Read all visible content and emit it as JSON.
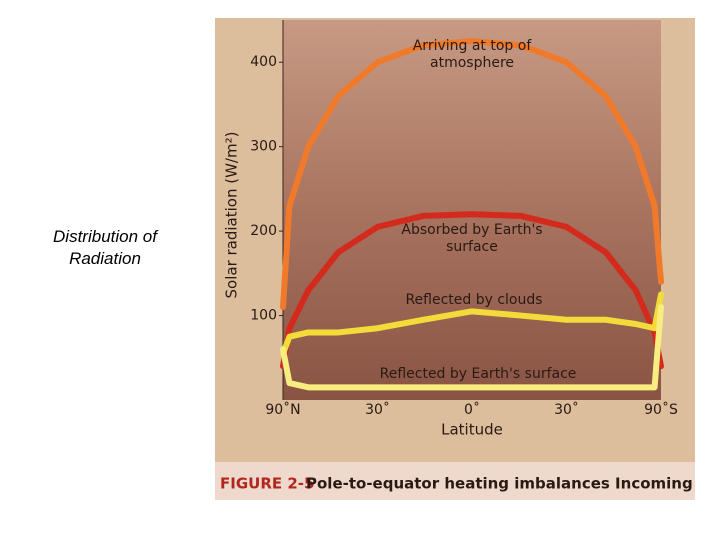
{
  "slide_text": "Distribution of Radiation",
  "chart_data": {
    "type": "line",
    "caption_label": "FIGURE 2-5",
    "caption": "Pole-to-equator heating imbalances Incoming",
    "xlabel": "Latitude",
    "ylabel": "Solar radiation (W/m²)",
    "x": [
      90,
      75,
      60,
      45,
      30,
      15,
      0,
      -15,
      -30,
      -45,
      -60,
      -75,
      -90
    ],
    "xlim": [
      90,
      -90
    ],
    "xscale": "sine",
    "xticks": [
      {
        "value": 90,
        "label": "90˚N"
      },
      {
        "value": 30,
        "label": "30˚"
      },
      {
        "value": 0,
        "label": "0˚"
      },
      {
        "value": -30,
        "label": "30˚"
      },
      {
        "value": -90,
        "label": "90˚S"
      }
    ],
    "ylim": [
      0,
      450
    ],
    "yticks": [
      100,
      200,
      300,
      400
    ],
    "series": [
      {
        "name": "Arriving at top of atmosphere",
        "color": "#f07a2a",
        "values": [
          110,
          230,
          300,
          360,
          400,
          420,
          425,
          420,
          400,
          360,
          300,
          230,
          140
        ]
      },
      {
        "name": "Absorbed by Earth's surface",
        "color": "#d42a1e",
        "values": [
          40,
          85,
          130,
          175,
          205,
          218,
          220,
          218,
          205,
          175,
          130,
          80,
          40
        ]
      },
      {
        "name": "Reflected by clouds",
        "color": "#f3dc3a",
        "values": [
          55,
          75,
          80,
          80,
          85,
          95,
          105,
          100,
          95,
          95,
          90,
          85,
          125
        ]
      },
      {
        "name": "Reflected by Earth's surface",
        "color": "#f8ee80",
        "values": [
          60,
          20,
          15,
          15,
          15,
          15,
          15,
          15,
          15,
          15,
          15,
          15,
          110
        ]
      }
    ]
  }
}
